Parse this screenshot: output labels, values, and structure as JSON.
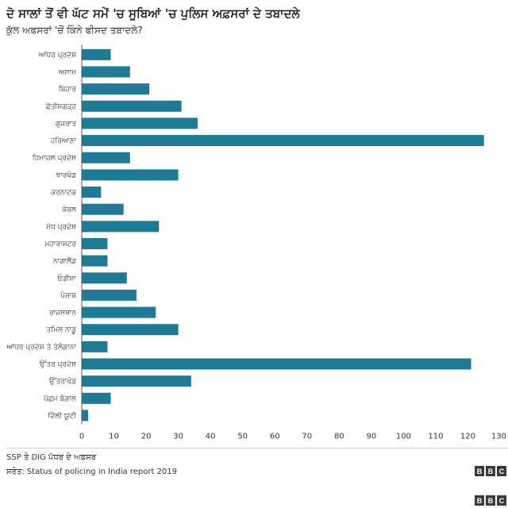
{
  "title": "ਦੋ ਸਾਲਾਂ ਤੋਂ ਵੀ ਘੱਟ ਸਮੇਂ 'ਚ ਸੂਬਿਆਂ 'ਚ ਪੁਲਿਸ ਅਫ਼ਸਰਾਂ ਦੇ ਤਬਾਦਲੇ",
  "subtitle": "ਕੁੱਲ ਅਫ਼ਸਰਾਂ 'ਚੋਂ ਕਿੰਨੇ ਫੀਸਦ ਤਬਾਦਲੇ?",
  "note": "SSP ਤੇ DIG ਪੱਧਰ ਦੇ ਅਫ਼ਸਰ",
  "source": "ਸਰੋਤ: Status of policing in India report 2019",
  "logo": {
    "letters": [
      "B",
      "B",
      "C"
    ]
  },
  "colors": {
    "bar": "#1f7a96",
    "axis": "#555555"
  },
  "chart_data": {
    "type": "bar",
    "orientation": "horizontal",
    "categories": [
      "ਆਂਧਰ ਪ੍ਰਦੇਸ਼",
      "ਅਸਾਮ",
      "ਬਿਹਾਰ",
      "ਛੱਤੀਸਗੜ੍ਹ",
      "ਗੁਜਰਾਤ",
      "ਹਰਿਆਣਾ",
      "ਹਿਮਾਚਲ ਪ੍ਰਦੇਸ਼",
      "ਝਾਰਖੰਡ",
      "ਕਰਨਾਟਕ",
      "ਕੇਰਲ",
      "ਮੱਧ ਪ੍ਰਦੇਸ਼",
      "ਮਹਾਰਾਸ਼ਟਰ",
      "ਨਾਗਾਲੈਂਡ",
      "ਓਡੀਸ਼ਾ",
      "ਪੰਜਾਬ",
      "ਰਾਜਸਥਾਨ",
      "ਤਮਿਲ ਨਾਡੂ",
      "ਆਂਧਰ ਪ੍ਰਦੇਸ਼ ਤੇ ਤੇਲੰਗਾਨਾ",
      "ਉੱਤਰ ਪ੍ਰਦੇਸ਼",
      "ਉੱਤਰਾਖੰਡ",
      "ਪੱਛਮ ਬੰਗਾਲ",
      "ਦਿੱਲੀ ਯੂਟੀ"
    ],
    "values": [
      9,
      15,
      21,
      31,
      36,
      125,
      15,
      30,
      6,
      13,
      24,
      8,
      8,
      14,
      17,
      23,
      30,
      8,
      121,
      34,
      9,
      2
    ],
    "xlim": [
      0,
      130
    ],
    "xticks": [
      0,
      10,
      20,
      30,
      40,
      50,
      60,
      70,
      80,
      90,
      100,
      110,
      120,
      130
    ],
    "grid": false,
    "legend": "none"
  }
}
